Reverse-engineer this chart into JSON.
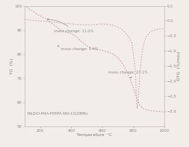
{
  "title": "",
  "xlabel": "Temperature  °C",
  "ylabel_left": "TG  (%)",
  "ylabel_right": "DTG  (%/min)",
  "xlim": [
    100,
    1000
  ],
  "ylim_tg": [
    50,
    100
  ],
  "ylim_dtg": [
    -3.5,
    0.5
  ],
  "xticks": [
    200,
    400,
    600,
    800,
    1000
  ],
  "yticks_tg": [
    50,
    60,
    70,
    80,
    90,
    100
  ],
  "yticks_dtg": [
    -3.0,
    -2.5,
    -2.0,
    -1.5,
    -1.0,
    -0.5,
    0.0,
    0.5
  ],
  "tg_color": "#c49090",
  "dtg_color": "#c4a0a0",
  "annotation_color": "#888888",
  "background_color": "#f2ede9",
  "annotation1": "mass change: 11.0%",
  "annotation2": "mass change: 5.4%",
  "annotation3": "mass change: 23.1%",
  "label_text": "Nd(ZnO-MAA-PHEMA-SBA-15)(DBM)₃",
  "tg_x": [
    100,
    120,
    140,
    160,
    180,
    200,
    220,
    240,
    260,
    280,
    300,
    320,
    340,
    360,
    380,
    400,
    420,
    440,
    460,
    480,
    500,
    520,
    540,
    560,
    580,
    600,
    620,
    640,
    660,
    680,
    700,
    720,
    740,
    760,
    780,
    800,
    820,
    840,
    860,
    880,
    900,
    920,
    940,
    960,
    980,
    1000
  ],
  "tg_y": [
    100,
    99.2,
    98.2,
    97.5,
    96.5,
    95.8,
    95.2,
    94.5,
    93.5,
    92.5,
    91.5,
    90.5,
    89.8,
    89.3,
    88.9,
    88.5,
    87.8,
    86.8,
    85.5,
    84.5,
    83.5,
    82.8,
    82.3,
    82.0,
    81.8,
    81.5,
    81.2,
    80.8,
    80.3,
    79.5,
    78.5,
    77.0,
    75.0,
    72.5,
    69.5,
    66.0,
    62.0,
    59.0,
    57.5,
    57.0,
    56.7,
    56.5,
    56.3,
    56.2,
    56.1,
    56.0
  ],
  "dtg_x": [
    100,
    150,
    200,
    250,
    300,
    350,
    400,
    450,
    500,
    550,
    600,
    650,
    700,
    730,
    760,
    790,
    810,
    820,
    825,
    830,
    835,
    840,
    850,
    860,
    880,
    910,
    950,
    1000
  ],
  "dtg_y": [
    0.05,
    0.02,
    0.0,
    -0.02,
    -0.05,
    -0.07,
    -0.1,
    -0.12,
    -0.13,
    -0.12,
    -0.1,
    -0.12,
    -0.2,
    -0.3,
    -0.45,
    -0.7,
    -1.5,
    -2.5,
    -2.9,
    -2.7,
    -2.3,
    -1.9,
    -1.3,
    -0.9,
    -0.55,
    -0.35,
    -0.28,
    -0.25
  ]
}
